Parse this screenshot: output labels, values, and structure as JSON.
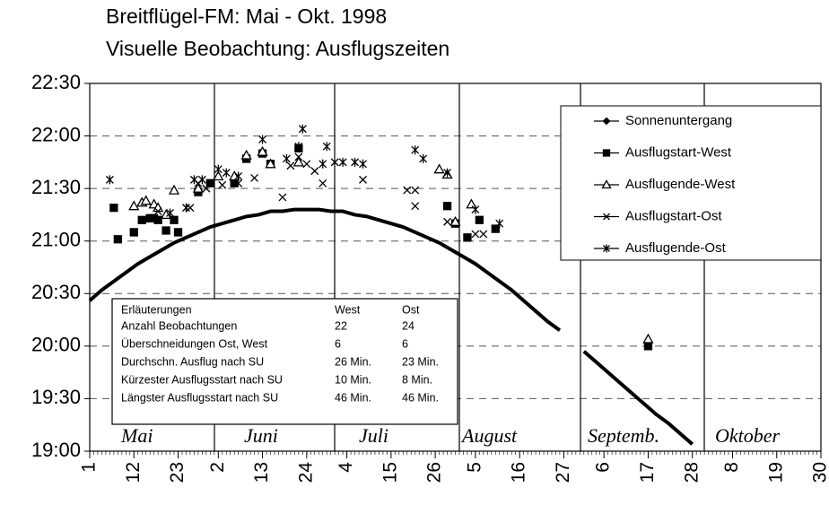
{
  "chart_data": {
    "type": "scatter",
    "title": "Breitflügel-FM: Mai - Okt. 1998",
    "subtitle": "Visuelle Beobachtung: Ausflugszeiten",
    "xlim": [
      1,
      183
    ],
    "ylim": [
      1140,
      1350
    ],
    "yticks": [
      {
        "value": 1140,
        "label": "19:00"
      },
      {
        "value": 1170,
        "label": "19:30"
      },
      {
        "value": 1200,
        "label": "20:00"
      },
      {
        "value": 1230,
        "label": "20:30"
      },
      {
        "value": 1260,
        "label": "21:00"
      },
      {
        "value": 1290,
        "label": "21:30"
      },
      {
        "value": 1320,
        "label": "22:00"
      },
      {
        "value": 1350,
        "label": "22:30"
      }
    ],
    "xticks": [
      1,
      12,
      23,
      {
        "value": 33,
        "label": "2"
      },
      {
        "value": 44,
        "label": "13"
      },
      {
        "value": 55,
        "label": "24"
      },
      {
        "value": 65,
        "label": "4"
      },
      {
        "value": 76,
        "label": "15"
      },
      {
        "value": 87,
        "label": "26"
      },
      {
        "value": 97,
        "label": "5"
      },
      {
        "value": 108,
        "label": "16"
      },
      {
        "value": 119,
        "label": "27"
      },
      {
        "value": 129,
        "label": "6"
      },
      {
        "value": 140,
        "label": "17"
      },
      {
        "value": 151,
        "label": "28"
      },
      {
        "value": 161,
        "label": "8"
      },
      {
        "value": 172,
        "label": "19"
      },
      {
        "value": 183,
        "label": "30"
      }
    ],
    "grid": true,
    "months": [
      "Mai",
      "Juni",
      "Juli",
      "August",
      "Septemb.",
      "Oktober"
    ],
    "series": [
      {
        "name": "Sonnenuntergang",
        "type": "line",
        "marker": "diamond",
        "color": "#000000",
        "x": [
          1,
          4,
          7,
          10,
          13,
          16,
          19,
          22,
          25,
          28,
          31,
          34,
          37,
          40,
          43,
          46,
          49,
          52,
          55,
          58,
          61,
          64,
          67,
          70,
          73,
          76,
          79,
          82,
          85,
          88,
          91,
          94,
          97,
          100,
          103,
          106,
          109,
          112,
          115,
          118,
          121,
          124,
          127,
          130,
          133,
          136,
          139,
          142,
          145,
          148,
          151
        ],
        "values": [
          1226,
          1232,
          1237,
          1242,
          1247,
          1251,
          1255,
          1259,
          1262,
          1265,
          1268,
          1270,
          1272,
          1274,
          1275,
          1277,
          1277,
          1278,
          1278,
          1278,
          1277,
          1277,
          1275,
          1274,
          1272,
          1270,
          1268,
          1265,
          1262,
          1259,
          1255,
          1251,
          1247,
          1242,
          1237,
          1232,
          1226,
          1220,
          1214,
          1209,
          null,
          1197,
          1191,
          1185,
          1179,
          1173,
          1167,
          1161,
          1156,
          1150,
          1144
        ]
      },
      {
        "name": "Ausflugstart-West",
        "type": "scatter",
        "marker": "square",
        "color": "#000000",
        "x": [
          7,
          8,
          12,
          14,
          16,
          17,
          18,
          20,
          22,
          23,
          28,
          31,
          37,
          40,
          44,
          46,
          53,
          90,
          92,
          95,
          98,
          102,
          140
        ],
        "values": [
          1279,
          1261,
          1265,
          1272,
          1273,
          1273,
          1272,
          1266,
          1272,
          1265,
          1288,
          1293,
          1293,
          1307,
          1310,
          1304,
          1313,
          1280,
          1270,
          1262,
          1272,
          1267,
          1200
        ]
      },
      {
        "name": "Ausflugende-West",
        "type": "scatter",
        "marker": "triangle",
        "color": "#000000",
        "x": [
          12,
          14,
          15,
          17,
          18,
          20,
          22,
          28,
          33,
          37,
          40,
          44,
          46,
          53,
          88,
          90,
          92,
          96,
          140
        ],
        "values": [
          1280,
          1282,
          1283,
          1281,
          1279,
          1275,
          1289,
          1290,
          1297,
          1297,
          1309,
          1311,
          1304,
          1305,
          1301,
          1298,
          1271,
          1281,
          1204
        ]
      },
      {
        "name": "Ausflugstart-Ost",
        "type": "scatter",
        "marker": "x",
        "color": "#000000",
        "x": [
          18,
          26,
          28,
          30,
          34,
          38,
          42,
          49,
          51,
          53,
          55,
          57,
          59,
          62,
          69,
          80,
          82,
          82,
          90,
          97,
          99
        ],
        "values": [
          1277,
          1279,
          1293,
          1290,
          1292,
          1293,
          1296,
          1285,
          1303,
          1308,
          1304,
          1300,
          1293,
          1305,
          1295,
          1289,
          1289,
          1280,
          1271,
          1264,
          1264
        ]
      },
      {
        "name": "Ausflugende-Ost",
        "type": "scatter",
        "marker": "asterisk",
        "color": "#000000",
        "x": [
          6,
          21,
          25,
          27,
          29,
          33,
          35,
          38,
          44,
          50,
          53,
          54,
          59,
          60,
          64,
          67,
          69,
          82,
          84,
          90,
          97,
          103
        ],
        "values": [
          1295,
          1276,
          1279,
          1295,
          1295,
          1301,
          1299,
          1297,
          1318,
          1307,
          1314,
          1324,
          1304,
          1314,
          1305,
          1305,
          1304,
          1312,
          1307,
          1299,
          1278,
          1270
        ]
      }
    ],
    "info_table": {
      "header": [
        "Erläuterungen",
        "West",
        "Ost"
      ],
      "rows": [
        [
          "Anzahl Beobachtungen",
          "22",
          "24"
        ],
        [
          "Überschneidungen Ost, West",
          "6",
          "6"
        ],
        [
          "Durchschn. Ausflug nach SU",
          "26 Min.",
          "23 Min."
        ],
        [
          "Kürzester Ausflugsstart nach SU",
          "10 Min.",
          "8 Min."
        ],
        [
          "Längster Ausflugsstart nach SU",
          "46 Min.",
          "46 Min."
        ]
      ]
    }
  }
}
